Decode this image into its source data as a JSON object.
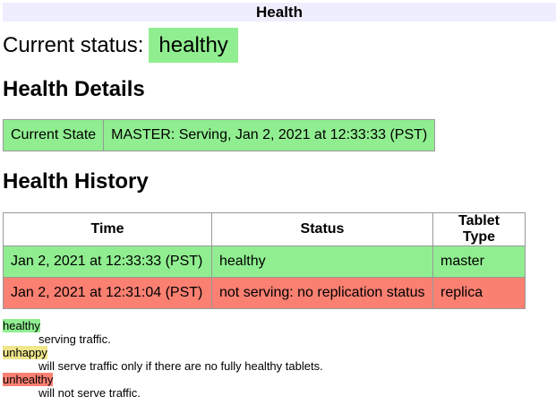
{
  "title": "Health",
  "current_status": {
    "label": "Current status:",
    "value": "healthy"
  },
  "details": {
    "heading": "Health Details",
    "key": "Current State",
    "value": "MASTER: Serving, Jan 2, 2021 at 12:33:33 (PST)"
  },
  "history": {
    "heading": "Health History",
    "columns": [
      "Time",
      "Status",
      "Tablet Type"
    ],
    "rows": [
      [
        "Jan 2, 2021 at 12:33:33 (PST)",
        "healthy",
        "master"
      ],
      [
        "Jan 2, 2021 at 12:31:04 (PST)",
        "not serving: no replication status",
        "replica"
      ]
    ]
  },
  "legend": [
    {
      "term": "healthy",
      "def": "serving traffic.",
      "color": "#90ee90"
    },
    {
      "term": "unhappy",
      "def": "will serve traffic only if there are no fully healthy tablets.",
      "color": "#f0e68c"
    },
    {
      "term": "unhealthy",
      "def": "will not serve traffic.",
      "color": "#fa8072"
    }
  ]
}
